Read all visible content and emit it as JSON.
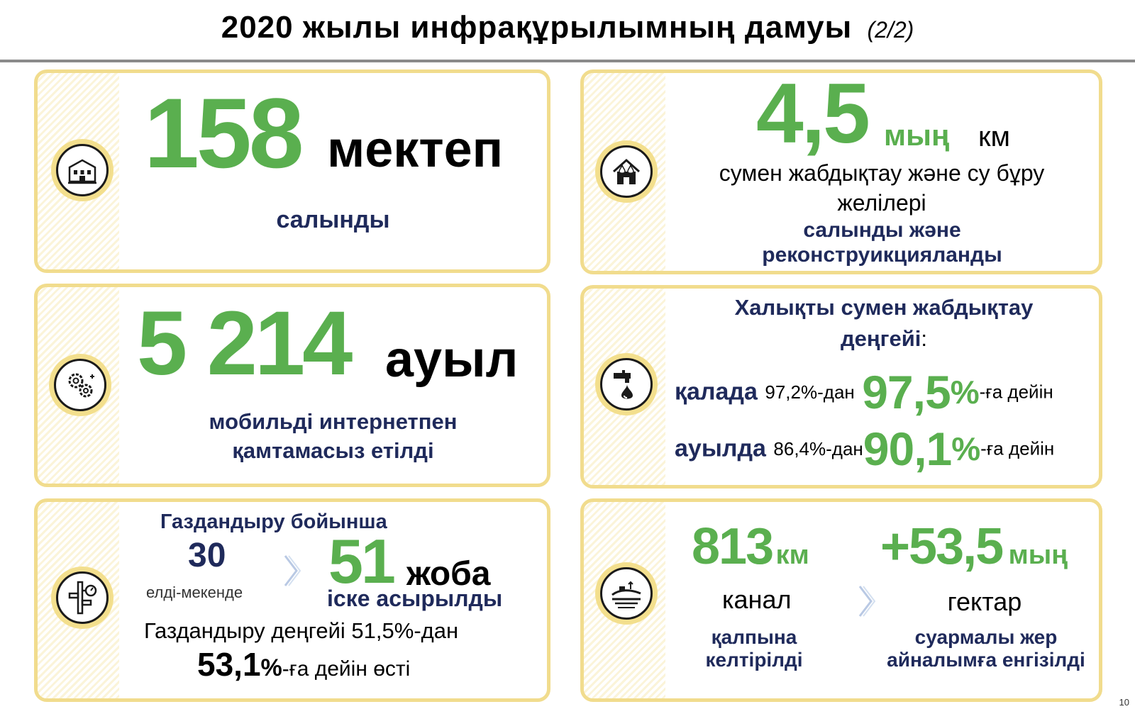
{
  "header": {
    "title": "2020 жылы инфрақұрылымның дамуы",
    "page_indicator": "(2/2)"
  },
  "cards": {
    "schools": {
      "icon": "school-building-icon",
      "number": "158",
      "unit": "мектеп",
      "caption": "салынды"
    },
    "water_networks": {
      "icon": "water-supply-house-icon",
      "number": "4,5",
      "unit_green": "мың",
      "unit_black": "км",
      "description": "сумен жабдықтау және су бұру желілері",
      "caption_line1": "салынды және",
      "caption_line2": "реконструикцияланды"
    },
    "internet": {
      "icon": "gears-icon",
      "number": "5 214",
      "unit": "ауыл",
      "caption_line1": "мобильді интернетпен",
      "caption_line2": "қамтамасыз етілді"
    },
    "water_supply_level": {
      "icon": "water-tap-drop-icon",
      "heading_line1": "Халықты сумен жабдықтау",
      "heading_line2": "деңгейі",
      "heading_colon": ":",
      "city_label": "қалада",
      "city_from": "97,2%-дан",
      "city_to_number": "97,5",
      "city_to_percent": "%",
      "city_suffix": "-ға дейін",
      "village_label": "ауылда",
      "village_from": "86,4%-дан",
      "village_to_number": "90,1",
      "village_to_percent": "%",
      "village_suffix": "-ға дейін"
    },
    "gas": {
      "icon": "gas-pipeline-icon",
      "heading": "Газдандыру бойынша",
      "settlements_number": "30",
      "settlements_label": "елді-мекенде",
      "projects_number": "51",
      "projects_unit": "жоба",
      "projects_caption": "іске асырылды",
      "level_text": "Газдандыру деңгейі 51,5%-дан",
      "level_number": "53,1",
      "level_percent": "%",
      "level_suffix": "-ға дейін өсті"
    },
    "irrigation": {
      "icon": "irrigated-field-icon",
      "canal_number": "813",
      "canal_unit": "км",
      "canal_label": "канал",
      "canal_caption_line1": "қалпына",
      "canal_caption_line2": "келтірілді",
      "hectares_number": "+53,5",
      "hectares_unit": "мың",
      "hectares_label": "гектар",
      "hectares_caption_line1": "суармалы жер",
      "hectares_caption_line2": "айналымға енгізілді"
    }
  },
  "footer": {
    "page_number": "10"
  },
  "colors": {
    "green": "#5aaf4f",
    "navy": "#1f2a5b",
    "card_border": "#f1dc8d",
    "rule": "#8a8a8a"
  }
}
